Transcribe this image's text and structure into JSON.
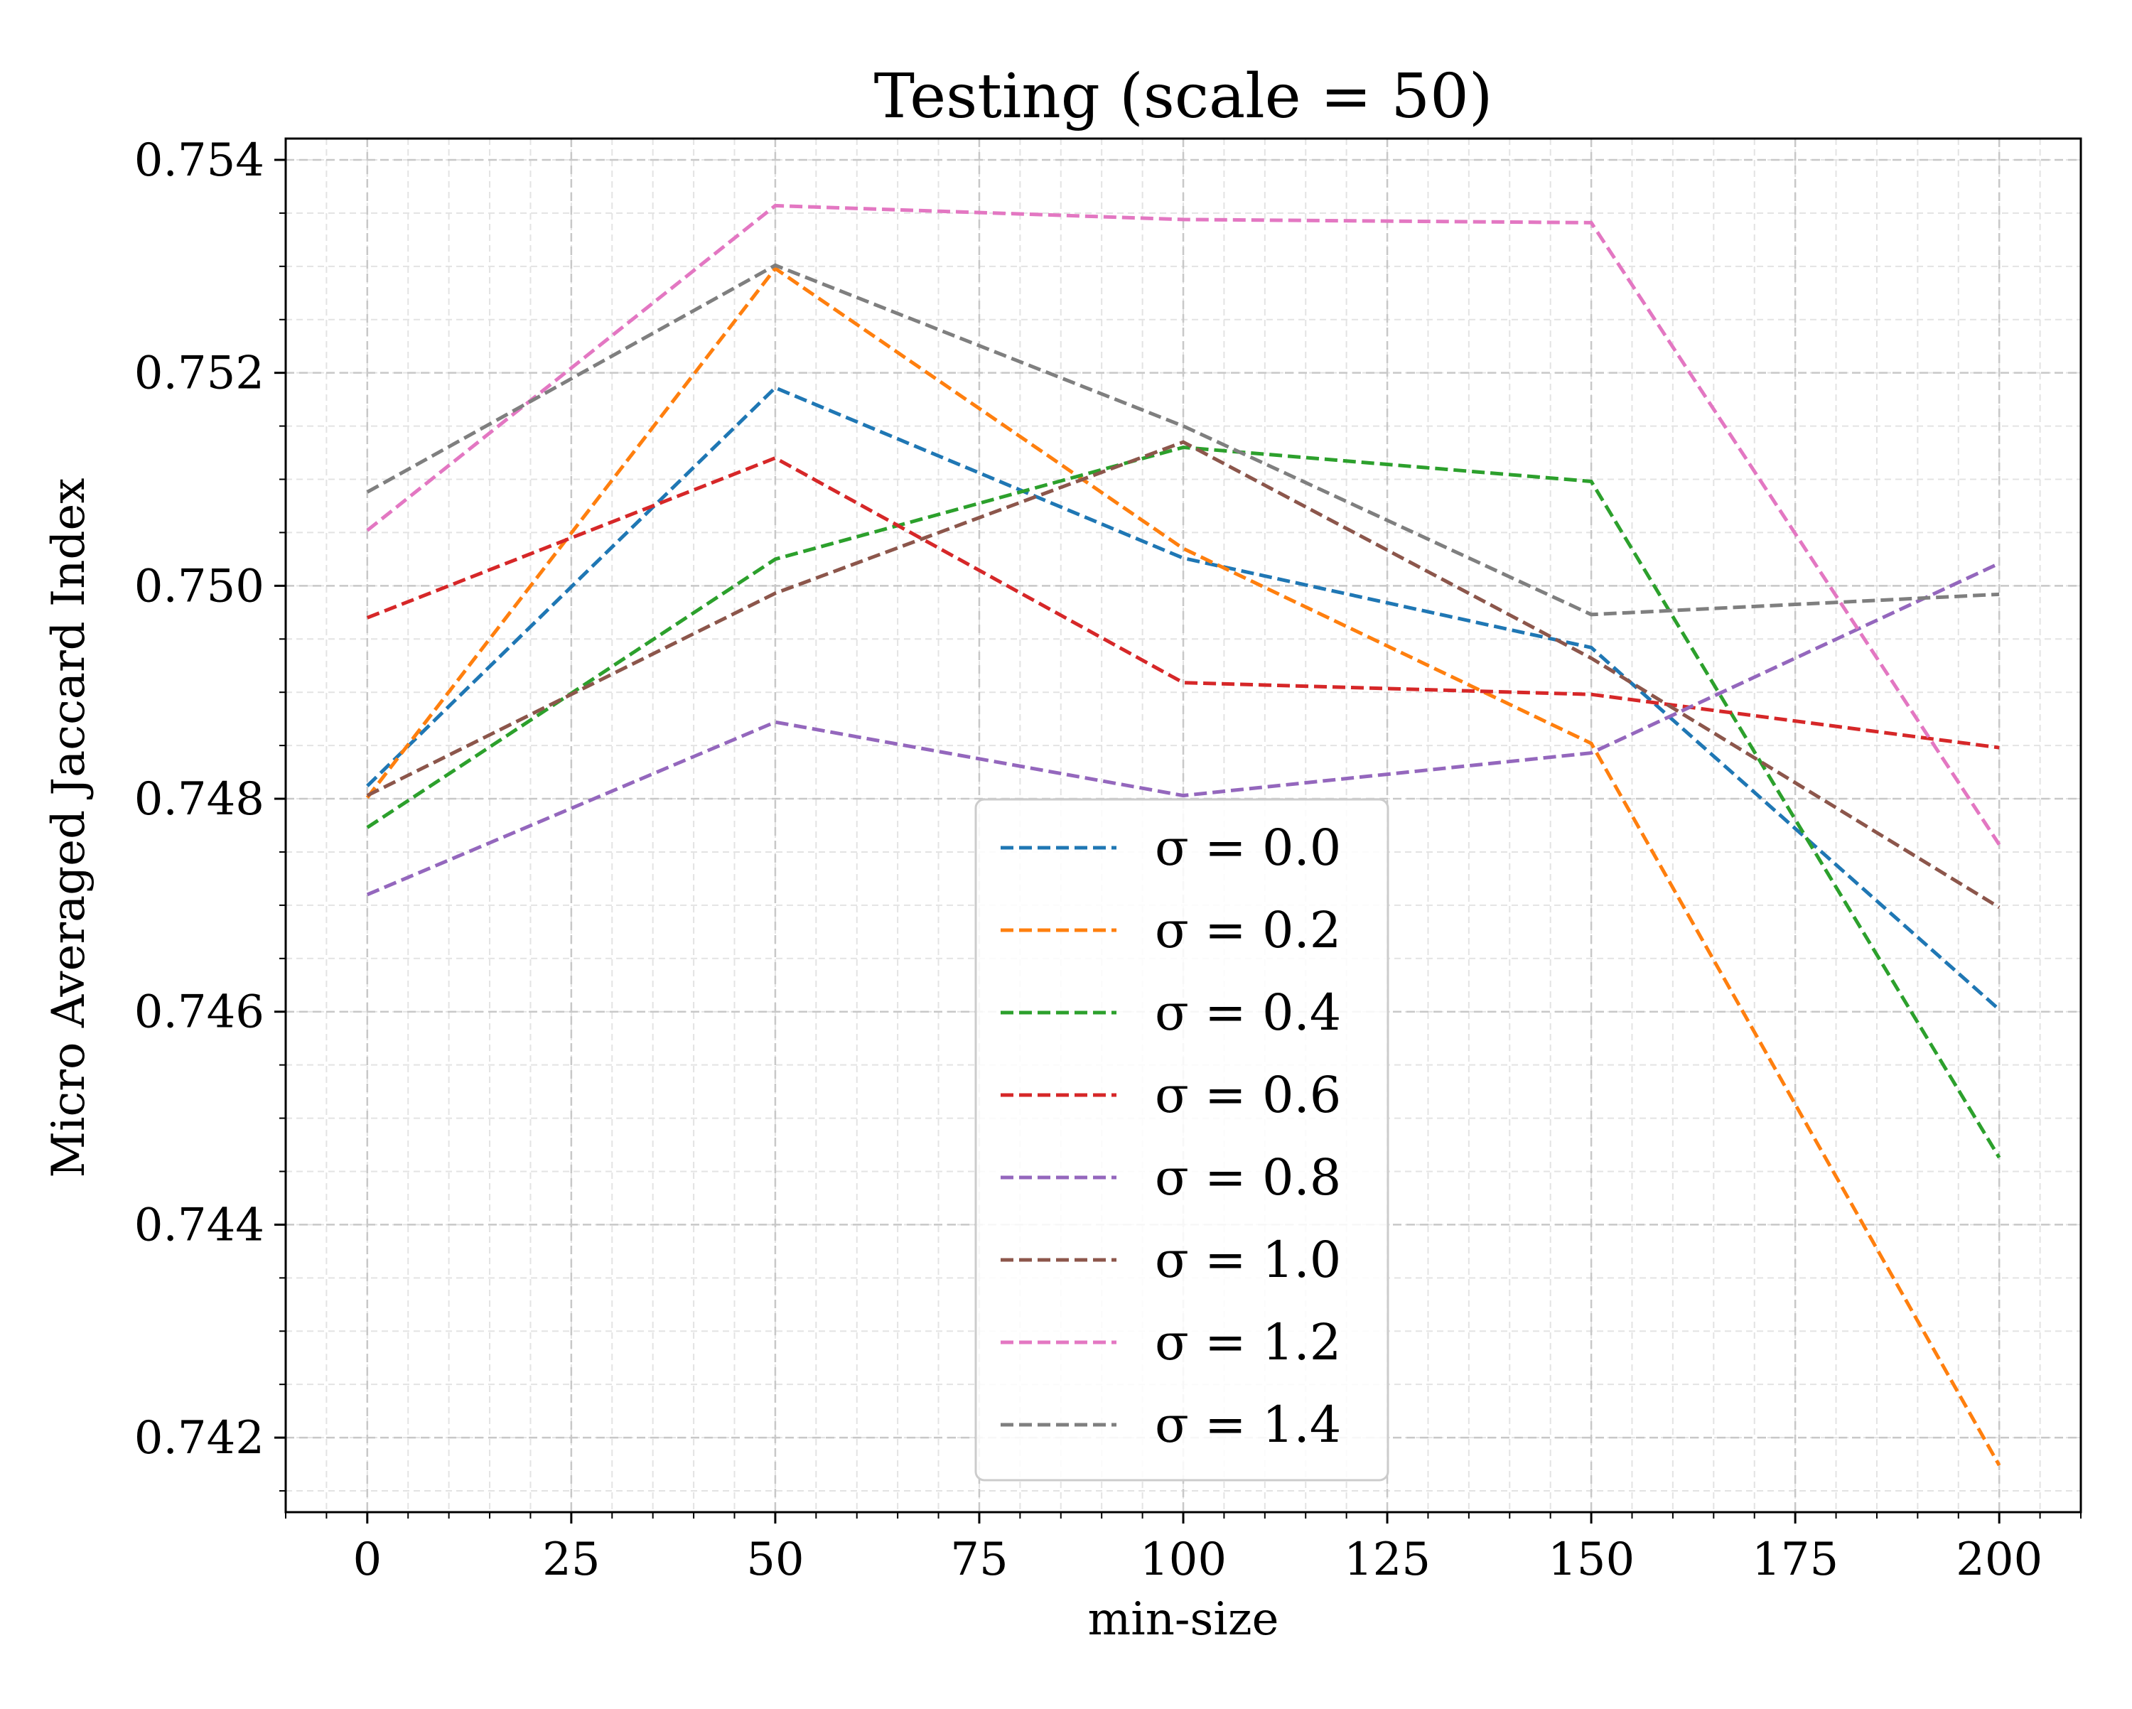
{
  "chart_data": {
    "type": "line",
    "title": "Testing (scale = 50)",
    "xlabel": "min-size",
    "ylabel": "Micro Averaged Jaccard Index",
    "x": [
      0,
      50,
      100,
      150,
      200
    ],
    "xlim": [
      -10,
      210
    ],
    "ylim": [
      0.7413,
      0.7542
    ],
    "xticks": [
      0,
      25,
      50,
      75,
      100,
      125,
      150,
      175,
      200
    ],
    "xtick_labels": [
      "0",
      "25",
      "50",
      "75",
      "100",
      "125",
      "150",
      "175",
      "200"
    ],
    "yticks": [
      0.742,
      0.744,
      0.746,
      0.748,
      0.75,
      0.752,
      0.754
    ],
    "ytick_labels": [
      "0.742",
      "0.744",
      "0.746",
      "0.748",
      "0.750",
      "0.752",
      "0.754"
    ],
    "grid": true,
    "line_style": "dashed",
    "legend_position": "lower-center",
    "series": [
      {
        "name": "σ = 0.0",
        "color": "#1f77b4",
        "values": [
          0.74812,
          0.75186,
          0.75026,
          0.74942,
          0.74602
        ]
      },
      {
        "name": "σ = 0.2",
        "color": "#ff7f0e",
        "values": [
          0.74801,
          0.75298,
          0.75035,
          0.74852,
          0.74174
        ]
      },
      {
        "name": "σ = 0.4",
        "color": "#2ca02c",
        "values": [
          0.74773,
          0.75025,
          0.7513,
          0.75098,
          0.74463
        ]
      },
      {
        "name": "σ = 0.6",
        "color": "#d62728",
        "values": [
          0.7497,
          0.7512,
          0.74909,
          0.74898,
          0.74848
        ]
      },
      {
        "name": "σ = 0.8",
        "color": "#9467bd",
        "values": [
          0.7471,
          0.74872,
          0.74803,
          0.74843,
          0.75021
        ]
      },
      {
        "name": "σ = 1.0",
        "color": "#8c564b",
        "values": [
          0.74803,
          0.74993,
          0.75135,
          0.74932,
          0.74698
        ]
      },
      {
        "name": "σ = 1.2",
        "color": "#e377c2",
        "values": [
          0.75052,
          0.75357,
          0.75344,
          0.75341,
          0.74757
        ]
      },
      {
        "name": "σ = 1.4",
        "color": "#7f7f7f",
        "values": [
          0.75088,
          0.75301,
          0.7515,
          0.74973,
          0.74992
        ]
      }
    ]
  }
}
